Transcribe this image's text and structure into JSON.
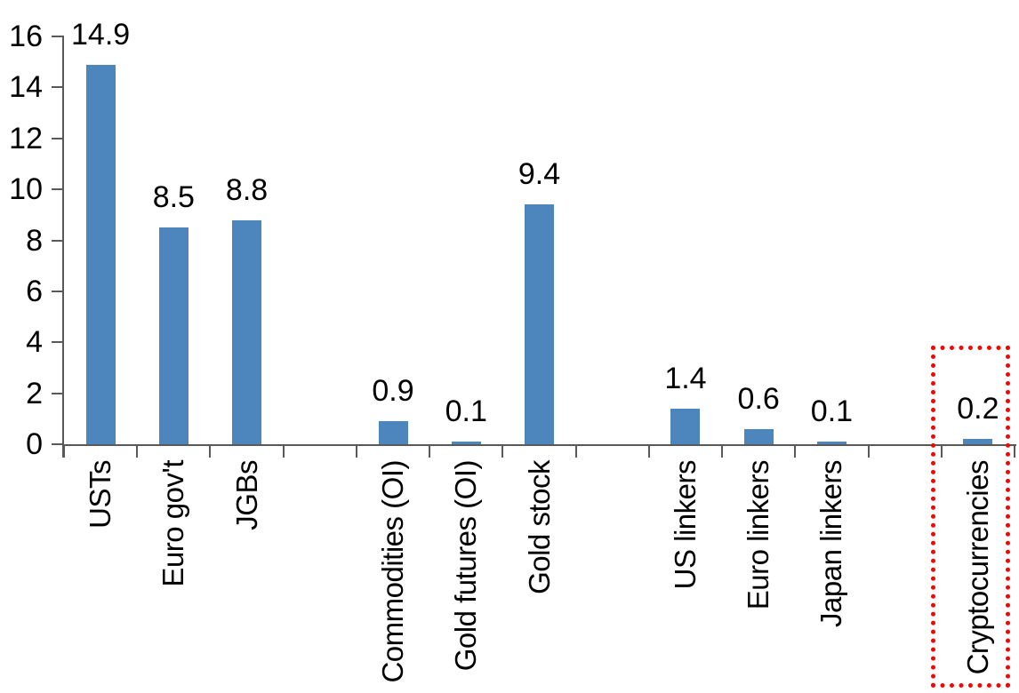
{
  "chart_data": {
    "type": "bar",
    "title": "",
    "xlabel": "",
    "ylabel": "",
    "ylim": [
      0,
      16
    ],
    "y_ticks": [
      0,
      2,
      4,
      6,
      8,
      10,
      12,
      14,
      16
    ],
    "grid": "off",
    "legend": "none",
    "bar_color": "#4C86BC",
    "axis_color": "#595959",
    "text_color": "#000000",
    "bars": [
      {
        "category": "USTs",
        "value": 14.9,
        "value_label": "14.9"
      },
      {
        "category": "Euro gov't",
        "value": 8.5,
        "value_label": "8.5"
      },
      {
        "category": "JGBs",
        "value": 8.8,
        "value_label": "8.8"
      },
      {
        "category": "",
        "value": null,
        "value_label": ""
      },
      {
        "category": "Commodities (OI)",
        "value": 0.9,
        "value_label": "0.9"
      },
      {
        "category": "Gold futures (OI)",
        "value": 0.1,
        "value_label": "0.1"
      },
      {
        "category": "Gold stock",
        "value": 9.4,
        "value_label": "9.4"
      },
      {
        "category": "",
        "value": null,
        "value_label": ""
      },
      {
        "category": "US linkers",
        "value": 1.4,
        "value_label": "1.4"
      },
      {
        "category": "Euro linkers",
        "value": 0.6,
        "value_label": "0.6"
      },
      {
        "category": "Japan linkers",
        "value": 0.1,
        "value_label": "0.1"
      },
      {
        "category": "",
        "value": null,
        "value_label": ""
      },
      {
        "category": "Cryptocurrencies",
        "value": 0.2,
        "value_label": "0.2"
      }
    ],
    "highlight": {
      "category": "Cryptocurrencies",
      "slot_index": 12,
      "style": "dotted-box",
      "color": "#FF0000"
    }
  }
}
